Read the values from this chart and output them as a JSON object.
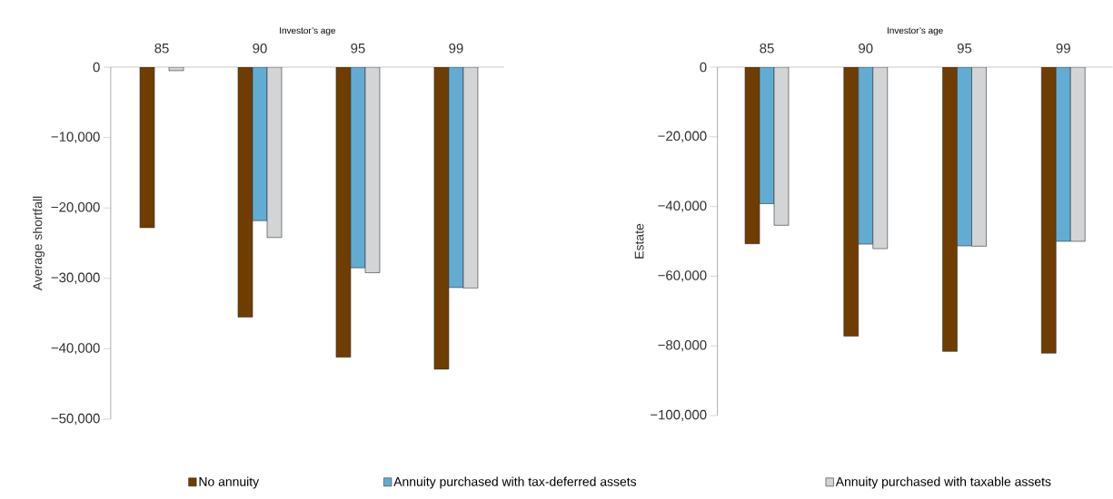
{
  "chart_data": [
    {
      "type": "bar",
      "xlabel": "Investor’s age",
      "ylabel": "Average shortfall",
      "categories": [
        "85",
        "90",
        "95",
        "99"
      ],
      "legend": "bottom",
      "ylim": [
        -50000,
        0
      ],
      "yticks": [
        {
          "value": -50000,
          "label": "−50,000"
        },
        {
          "value": -40000,
          "label": "−40,000"
        },
        {
          "value": -30000,
          "label": "−30,000"
        },
        {
          "value": -20000,
          "label": "−20,000"
        },
        {
          "value": -10000,
          "label": "−10,000"
        },
        0
      ],
      "series": [
        {
          "name": "No annuity",
          "color": "#6f3d00",
          "values": [
            -22800,
            -35500,
            -41200,
            -42900
          ]
        },
        {
          "name": "Annuity purchased with tax-deferred assets",
          "color": "#62acd4",
          "values": [
            null,
            -21800,
            -28500,
            -31300
          ]
        },
        {
          "name": "Annuity purchased with taxable assets",
          "color": "#d3d4d6",
          "values": [
            -500,
            -24200,
            -29200,
            -31400
          ]
        }
      ]
    },
    {
      "type": "bar",
      "xlabel": "Investor’s age",
      "ylabel": "Estate",
      "categories": [
        "85",
        "90",
        "95",
        "99"
      ],
      "ylim": [
        -100000,
        0
      ],
      "yticks": [
        {
          "value": -100000,
          "label": "−100,000"
        },
        {
          "value": -80000,
          "label": "−80,000"
        },
        {
          "value": -60000,
          "label": "−60,000"
        },
        {
          "value": -40000,
          "label": "−40,000"
        },
        {
          "value": -20000,
          "label": "−20,000"
        },
        0
      ],
      "series": [
        {
          "color": "#6f3d00",
          "values": [
            -50700,
            -77200,
            -81600,
            -82100
          ]
        },
        {
          "color": "#62acd4",
          "values": [
            -39200,
            -50800,
            -51300,
            -50000
          ]
        },
        {
          "color": "#d3d4d6",
          "values": [
            -45400,
            -52100,
            -51400,
            -50000
          ]
        }
      ]
    }
  ]
}
